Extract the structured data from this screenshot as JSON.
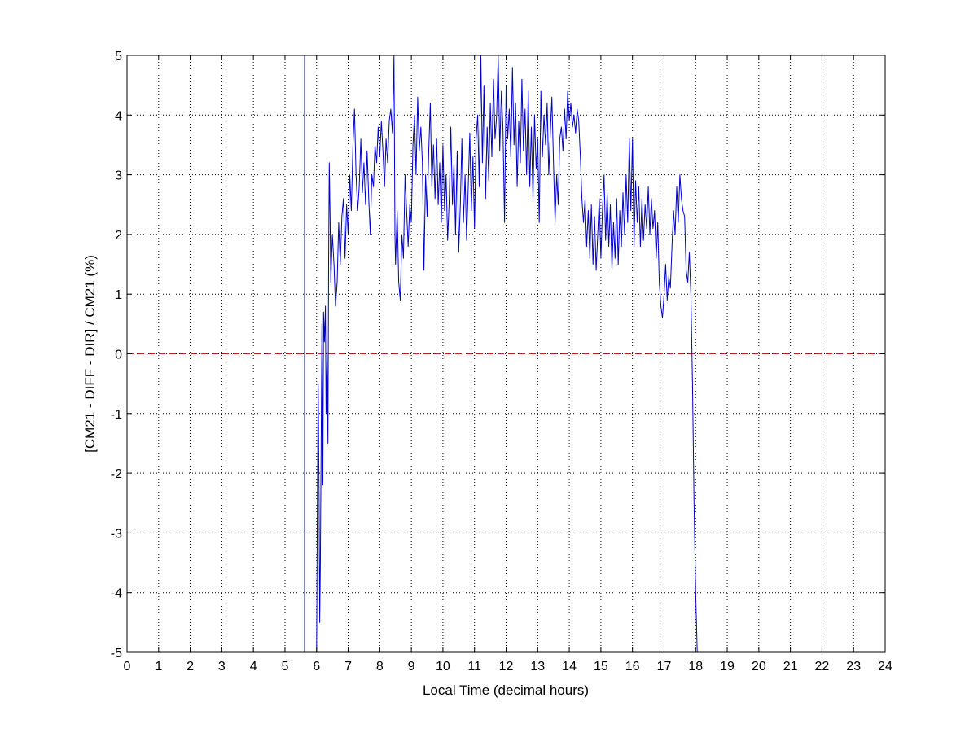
{
  "chart_data": {
    "type": "line",
    "title": "",
    "xlabel": "Local Time (decimal hours)",
    "ylabel": "[CM21 - DIFF - DIR] / CM21 (%)",
    "xlim": [
      0,
      24
    ],
    "ylim": [
      -5,
      5
    ],
    "x_ticks": [
      "0",
      "1",
      "2",
      "3",
      "4",
      "5",
      "6",
      "7",
      "8",
      "9",
      "10",
      "11",
      "12",
      "13",
      "14",
      "15",
      "16",
      "17",
      "18",
      "19",
      "20",
      "21",
      "22",
      "23",
      "24"
    ],
    "y_ticks": [
      "5",
      "4",
      "3",
      "2",
      "1",
      "0",
      "-1",
      "-2",
      "-3",
      "-4",
      "-5"
    ],
    "grid": true,
    "grid_style": "dotted",
    "reference_line": {
      "y": 0,
      "style": "dashed",
      "color": "#b22222"
    },
    "series": [
      {
        "name": "",
        "color": "#0000cc",
        "points": [
          [
            5.62,
            -5
          ],
          [
            5.62,
            5
          ],
          [
            5.62,
            -5
          ],
          [
            6.0,
            -5
          ],
          [
            6.02,
            -3.0
          ],
          [
            6.05,
            -0.5
          ],
          [
            6.08,
            -2.5
          ],
          [
            6.1,
            -4.5
          ],
          [
            6.12,
            -3.5
          ],
          [
            6.15,
            -1.0
          ],
          [
            6.17,
            0.5
          ],
          [
            6.2,
            -2.2
          ],
          [
            6.22,
            0.7
          ],
          [
            6.25,
            0.2
          ],
          [
            6.28,
            0.8
          ],
          [
            6.3,
            -1.0
          ],
          [
            6.33,
            0.0
          ],
          [
            6.36,
            -1.5
          ],
          [
            6.38,
            1.5
          ],
          [
            6.4,
            3.2
          ],
          [
            6.43,
            2.2
          ],
          [
            6.45,
            1.2
          ],
          [
            6.5,
            2.0
          ],
          [
            6.55,
            1.5
          ],
          [
            6.6,
            0.8
          ],
          [
            6.65,
            1.2
          ],
          [
            6.7,
            2.2
          ],
          [
            6.75,
            1.5
          ],
          [
            6.8,
            2.3
          ],
          [
            6.85,
            2.6
          ],
          [
            6.9,
            1.6
          ],
          [
            6.95,
            2.5
          ],
          [
            7.0,
            2.0
          ],
          [
            7.05,
            3.0
          ],
          [
            7.1,
            2.4
          ],
          [
            7.15,
            3.5
          ],
          [
            7.2,
            4.1
          ],
          [
            7.25,
            3.0
          ],
          [
            7.3,
            2.4
          ],
          [
            7.35,
            2.8
          ],
          [
            7.4,
            3.6
          ],
          [
            7.45,
            2.7
          ],
          [
            7.5,
            3.2
          ],
          [
            7.55,
            2.5
          ],
          [
            7.6,
            3.4
          ],
          [
            7.65,
            2.6
          ],
          [
            7.7,
            2.0
          ],
          [
            7.75,
            3.0
          ],
          [
            7.8,
            2.8
          ],
          [
            7.85,
            3.5
          ],
          [
            7.9,
            3.2
          ],
          [
            7.95,
            3.8
          ],
          [
            8.0,
            3.3
          ],
          [
            8.05,
            3.9
          ],
          [
            8.1,
            3.4
          ],
          [
            8.15,
            2.8
          ],
          [
            8.2,
            3.6
          ],
          [
            8.25,
            3.2
          ],
          [
            8.3,
            3.9
          ],
          [
            8.35,
            4.1
          ],
          [
            8.4,
            3.7
          ],
          [
            8.45,
            5.0
          ],
          [
            8.48,
            2.0
          ],
          [
            8.5,
            1.5
          ],
          [
            8.55,
            2.4
          ],
          [
            8.6,
            1.2
          ],
          [
            8.65,
            0.9
          ],
          [
            8.7,
            2.0
          ],
          [
            8.75,
            1.6
          ],
          [
            8.8,
            3.0
          ],
          [
            8.85,
            2.4
          ],
          [
            8.9,
            1.8
          ],
          [
            8.95,
            2.5
          ],
          [
            9.0,
            2.2
          ],
          [
            9.05,
            3.5
          ],
          [
            9.1,
            4.0
          ],
          [
            9.15,
            3.0
          ],
          [
            9.2,
            4.3
          ],
          [
            9.25,
            3.4
          ],
          [
            9.3,
            3.8
          ],
          [
            9.35,
            3.2
          ],
          [
            9.4,
            1.4
          ],
          [
            9.45,
            3.0
          ],
          [
            9.5,
            2.3
          ],
          [
            9.55,
            3.4
          ],
          [
            9.6,
            4.2
          ],
          [
            9.65,
            2.8
          ],
          [
            9.7,
            3.5
          ],
          [
            9.75,
            2.6
          ],
          [
            9.8,
            3.6
          ],
          [
            9.85,
            2.5
          ],
          [
            9.9,
            3.2
          ],
          [
            9.95,
            2.2
          ],
          [
            10.0,
            3.5
          ],
          [
            10.05,
            2.4
          ],
          [
            10.1,
            3.0
          ],
          [
            10.15,
            1.9
          ],
          [
            10.2,
            2.6
          ],
          [
            10.25,
            3.8
          ],
          [
            10.3,
            2.5
          ],
          [
            10.35,
            3.2
          ],
          [
            10.4,
            2.0
          ],
          [
            10.45,
            3.4
          ],
          [
            10.5,
            1.7
          ],
          [
            10.55,
            2.5
          ],
          [
            10.6,
            3.6
          ],
          [
            10.65,
            2.2
          ],
          [
            10.7,
            3.0
          ],
          [
            10.75,
            1.9
          ],
          [
            10.8,
            2.8
          ],
          [
            10.85,
            3.7
          ],
          [
            10.9,
            2.4
          ],
          [
            10.95,
            3.3
          ],
          [
            11.0,
            2.1
          ],
          [
            11.05,
            3.6
          ],
          [
            11.1,
            4.0
          ],
          [
            11.15,
            2.8
          ],
          [
            11.2,
            5.0
          ],
          [
            11.25,
            3.2
          ],
          [
            11.3,
            4.5
          ],
          [
            11.35,
            2.6
          ],
          [
            11.4,
            3.8
          ],
          [
            11.45,
            2.9
          ],
          [
            11.5,
            4.2
          ],
          [
            11.55,
            3.3
          ],
          [
            11.6,
            4.6
          ],
          [
            11.65,
            3.6
          ],
          [
            11.7,
            4.0
          ],
          [
            11.75,
            5.0
          ],
          [
            11.8,
            3.4
          ],
          [
            11.85,
            4.4
          ],
          [
            11.9,
            3.8
          ],
          [
            11.95,
            2.2
          ],
          [
            12.0,
            4.5
          ],
          [
            12.05,
            3.6
          ],
          [
            12.1,
            4.1
          ],
          [
            12.15,
            3.3
          ],
          [
            12.2,
            4.8
          ],
          [
            12.25,
            3.5
          ],
          [
            12.3,
            4.2
          ],
          [
            12.35,
            2.8
          ],
          [
            12.4,
            3.9
          ],
          [
            12.45,
            3.2
          ],
          [
            12.5,
            4.6
          ],
          [
            12.55,
            3.4
          ],
          [
            12.6,
            4.1
          ],
          [
            12.65,
            3.0
          ],
          [
            12.7,
            4.4
          ],
          [
            12.75,
            2.8
          ],
          [
            12.8,
            3.8
          ],
          [
            12.85,
            2.6
          ],
          [
            12.9,
            4.0
          ],
          [
            12.95,
            3.1
          ],
          [
            13.0,
            3.6
          ],
          [
            13.05,
            2.2
          ],
          [
            13.1,
            4.4
          ],
          [
            13.15,
            3.3
          ],
          [
            13.2,
            4.0
          ],
          [
            13.25,
            3.5
          ],
          [
            13.3,
            4.2
          ],
          [
            13.35,
            3.0
          ],
          [
            13.4,
            3.7
          ],
          [
            13.45,
            4.3
          ],
          [
            13.5,
            3.2
          ],
          [
            13.55,
            2.2
          ],
          [
            13.6,
            3.0
          ],
          [
            13.65,
            2.5
          ],
          [
            13.7,
            3.6
          ],
          [
            13.75,
            3.8
          ],
          [
            13.8,
            3.4
          ],
          [
            13.85,
            4.1
          ],
          [
            13.9,
            3.6
          ],
          [
            13.95,
            4.4
          ],
          [
            14.0,
            3.9
          ],
          [
            14.05,
            4.2
          ],
          [
            14.1,
            3.8
          ],
          [
            14.15,
            4.0
          ],
          [
            14.2,
            3.7
          ],
          [
            14.25,
            4.1
          ],
          [
            14.3,
            3.9
          ],
          [
            14.35,
            3.3
          ],
          [
            14.4,
            2.6
          ],
          [
            14.45,
            2.2
          ],
          [
            14.5,
            2.6
          ],
          [
            14.55,
            1.8
          ],
          [
            14.6,
            2.4
          ],
          [
            14.65,
            1.6
          ],
          [
            14.7,
            2.5
          ],
          [
            14.75,
            1.5
          ],
          [
            14.8,
            2.3
          ],
          [
            14.85,
            1.4
          ],
          [
            14.9,
            2.0
          ],
          [
            14.95,
            2.6
          ],
          [
            15.0,
            1.6
          ],
          [
            15.05,
            2.4
          ],
          [
            15.1,
            3.0
          ],
          [
            15.15,
            1.9
          ],
          [
            15.2,
            2.7
          ],
          [
            15.25,
            1.8
          ],
          [
            15.3,
            2.5
          ],
          [
            15.35,
            1.4
          ],
          [
            15.4,
            2.2
          ],
          [
            15.45,
            1.6
          ],
          [
            15.5,
            2.6
          ],
          [
            15.55,
            1.5
          ],
          [
            15.6,
            2.4
          ],
          [
            15.65,
            1.8
          ],
          [
            15.7,
            2.7
          ],
          [
            15.75,
            2.0
          ],
          [
            15.8,
            3.0
          ],
          [
            15.85,
            2.2
          ],
          [
            15.9,
            3.6
          ],
          [
            15.95,
            2.4
          ],
          [
            16.0,
            3.6
          ],
          [
            16.05,
            1.8
          ],
          [
            16.1,
            2.9
          ],
          [
            16.15,
            2.2
          ],
          [
            16.2,
            2.8
          ],
          [
            16.25,
            1.8
          ],
          [
            16.3,
            2.6
          ],
          [
            16.35,
            1.9
          ],
          [
            16.4,
            2.5
          ],
          [
            16.45,
            2.1
          ],
          [
            16.5,
            2.8
          ],
          [
            16.55,
            2.0
          ],
          [
            16.6,
            2.6
          ],
          [
            16.65,
            2.1
          ],
          [
            16.7,
            2.4
          ],
          [
            16.75,
            1.6
          ],
          [
            16.8,
            2.2
          ],
          [
            16.85,
            1.2
          ],
          [
            16.9,
            0.8
          ],
          [
            16.95,
            0.6
          ],
          [
            17.0,
            1.0
          ],
          [
            17.05,
            1.5
          ],
          [
            17.1,
            0.9
          ],
          [
            17.15,
            1.3
          ],
          [
            17.2,
            1.1
          ],
          [
            17.25,
            1.8
          ],
          [
            17.3,
            2.4
          ],
          [
            17.35,
            2.0
          ],
          [
            17.4,
            2.8
          ],
          [
            17.45,
            2.2
          ],
          [
            17.5,
            3.0
          ],
          [
            17.55,
            2.6
          ],
          [
            17.6,
            2.4
          ],
          [
            17.65,
            2.3
          ],
          [
            17.7,
            1.4
          ],
          [
            17.75,
            1.2
          ],
          [
            17.8,
            1.7
          ],
          [
            17.85,
            1.0
          ],
          [
            17.9,
            -0.5
          ],
          [
            17.95,
            -2.5
          ],
          [
            18.0,
            -4.0
          ],
          [
            18.05,
            -5.0
          ]
        ]
      }
    ]
  }
}
